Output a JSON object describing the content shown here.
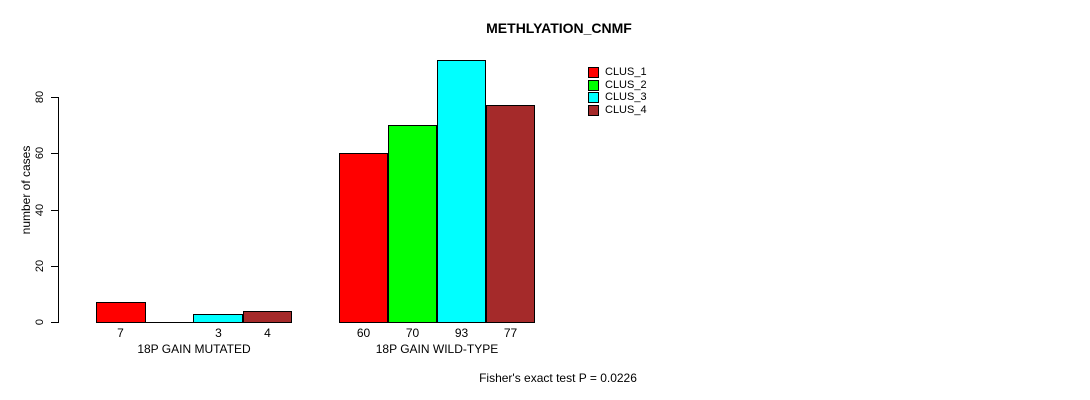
{
  "figure": {
    "background": "#ffffff"
  },
  "chart_data": {
    "type": "bar",
    "title": "METHLYATION_CNMF",
    "xlabel": "",
    "ylabel": "number of cases",
    "categories": [
      "18P GAIN MUTATED",
      "18P GAIN WILD-TYPE"
    ],
    "series": [
      {
        "name": "CLUS_1",
        "color": "#FF0000",
        "values": [
          7,
          60
        ]
      },
      {
        "name": "CLUS_2",
        "color": "#00FF00",
        "values": [
          0,
          70
        ]
      },
      {
        "name": "CLUS_3",
        "color": "#00FFFF",
        "values": [
          3,
          93
        ]
      },
      {
        "name": "CLUS_4",
        "color": "#A52A2A",
        "values": [
          4,
          77
        ]
      }
    ],
    "value_labels": [
      [
        "7",
        "",
        "3",
        "4"
      ],
      [
        "60",
        "70",
        "93",
        "77"
      ]
    ],
    "ylim": [
      0,
      80
    ],
    "yticks": [
      0,
      20,
      40,
      60,
      80
    ],
    "grid": false,
    "legend_position": "upper-right",
    "legend": [
      "CLUS_1",
      "CLUS_2",
      "CLUS_3",
      "CLUS_4"
    ],
    "annotation": "Fisher's exact test P = 0.0226"
  }
}
